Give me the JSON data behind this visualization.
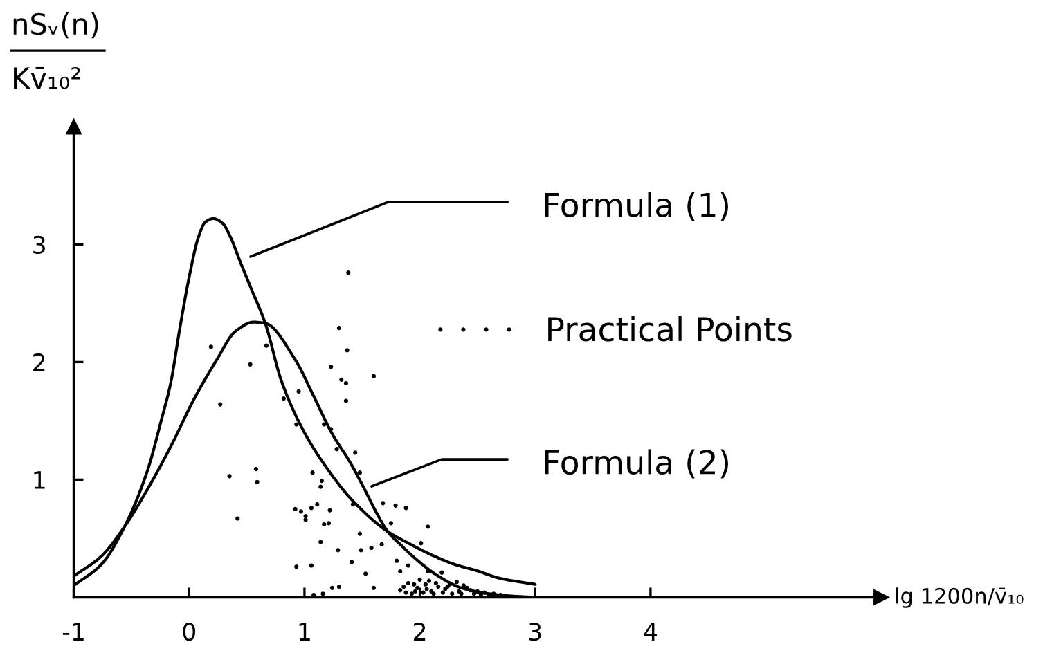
{
  "chart_data": {
    "type": "line",
    "xlabel": "lg 1200n/v̄₁₀",
    "ylabel": "nSᵥ(n)\nKv̄₁₀²",
    "xlim": [
      -1,
      6
    ],
    "ylim": [
      0,
      4
    ],
    "xticks": [
      -1,
      0,
      1,
      2,
      3,
      4
    ],
    "yticks": [
      1,
      2,
      3
    ],
    "legend": "right",
    "series": [
      {
        "name": "Formula (1)",
        "color": "#000000",
        "x": [
          -1,
          -0.76,
          -0.56,
          -0.36,
          -0.24,
          -0.16,
          -0.08,
          0.0,
          0.08,
          0.14,
          0.21,
          0.29,
          0.36,
          0.44,
          0.54,
          0.66,
          0.8,
          1.0,
          1.2,
          1.4,
          1.72,
          1.9,
          2.08,
          2.3,
          2.48,
          2.7,
          3.0
        ],
        "values": [
          0.1,
          0.28,
          0.6,
          1.08,
          1.51,
          1.82,
          2.29,
          2.72,
          3.06,
          3.19,
          3.22,
          3.18,
          3.06,
          2.86,
          2.62,
          2.33,
          1.84,
          1.4,
          1.09,
          0.84,
          0.56,
          0.46,
          0.37,
          0.28,
          0.23,
          0.16,
          0.11
        ]
      },
      {
        "name": "Formula (2)",
        "color": "#000000",
        "x": [
          -1,
          -0.76,
          -0.56,
          -0.36,
          -0.16,
          0.04,
          0.24,
          0.4,
          0.56,
          0.66,
          0.92,
          1.08,
          1.24,
          1.4,
          1.52,
          1.64,
          1.72,
          1.84,
          1.96,
          2.16,
          2.36,
          2.6,
          2.8,
          3.0
        ],
        "values": [
          0.18,
          0.35,
          0.6,
          0.92,
          1.28,
          1.68,
          2.02,
          2.26,
          2.34,
          2.33,
          2.02,
          1.71,
          1.39,
          1.14,
          0.92,
          0.69,
          0.56,
          0.44,
          0.33,
          0.18,
          0.08,
          0.03,
          0.01,
          0.0
        ]
      },
      {
        "name": "Practical Points",
        "type": "scatter",
        "marker": "circle",
        "color": "#000000",
        "x": [
          0.19,
          0.27,
          0.35,
          0.42,
          0.53,
          0.58,
          0.59,
          0.67,
          0.82,
          0.95,
          0.93,
          0.92,
          0.97,
          1.01,
          1.01,
          1.06,
          1.11,
          1.07,
          1.14,
          1.15,
          1.17,
          1.23,
          1.3,
          1.37,
          1.32,
          1.36,
          1.36,
          1.23,
          1.28,
          1.44,
          1.48,
          1.22,
          1.21,
          1.17,
          1.14,
          1.29,
          1.42,
          1.48,
          1.49,
          1.58,
          1.68,
          1.79,
          1.88,
          1.67,
          1.41,
          1.53,
          1.6,
          1.8,
          1.83,
          0.93,
          1.06,
          1.24,
          1.3,
          1.38,
          1.6,
          1.75,
          2.07,
          2.01,
          1.9,
          2.07,
          2.19,
          1.08,
          1.16,
          1.83,
          1.9,
          1.95,
          2.0,
          2.08,
          2.06,
          2.1,
          2.16,
          2.22,
          2.26,
          2.32,
          2.38,
          2.34,
          2.44,
          2.5,
          2.56,
          2.64,
          1.96,
          1.88,
          1.86,
          1.93,
          1.98,
          2.03,
          2.05,
          2.12,
          2.14,
          2.2,
          2.24,
          2.28,
          2.36,
          2.41,
          2.47,
          2.53,
          2.6,
          2.7
        ],
        "values": [
          2.13,
          1.64,
          1.03,
          0.67,
          1.98,
          1.09,
          0.98,
          2.14,
          1.69,
          1.75,
          1.47,
          0.75,
          0.73,
          0.69,
          0.66,
          0.76,
          0.79,
          1.06,
          0.94,
          0.99,
          1.47,
          1.96,
          2.29,
          2.1,
          1.85,
          1.82,
          1.67,
          1.43,
          1.26,
          1.23,
          1.06,
          0.74,
          0.63,
          0.62,
          0.47,
          0.4,
          0.79,
          0.54,
          0.4,
          0.42,
          0.8,
          0.78,
          0.76,
          0.45,
          0.3,
          0.2,
          0.08,
          0.31,
          0.22,
          0.26,
          0.27,
          0.08,
          0.09,
          2.76,
          1.88,
          0.63,
          0.6,
          0.46,
          0.27,
          0.22,
          0.21,
          0.02,
          0.03,
          0.06,
          0.12,
          0.11,
          0.15,
          0.14,
          0.07,
          0.05,
          0.09,
          0.07,
          0.11,
          0.13,
          0.1,
          0.05,
          0.06,
          0.05,
          0.04,
          0.03,
          0.05,
          0.04,
          0.09,
          0.03,
          0.08,
          0.04,
          0.11,
          0.03,
          0.12,
          0.04,
          0.09,
          0.03,
          0.03,
          0.08,
          0.03,
          0.02,
          0.02,
          0.02
        ]
      }
    ]
  }
}
